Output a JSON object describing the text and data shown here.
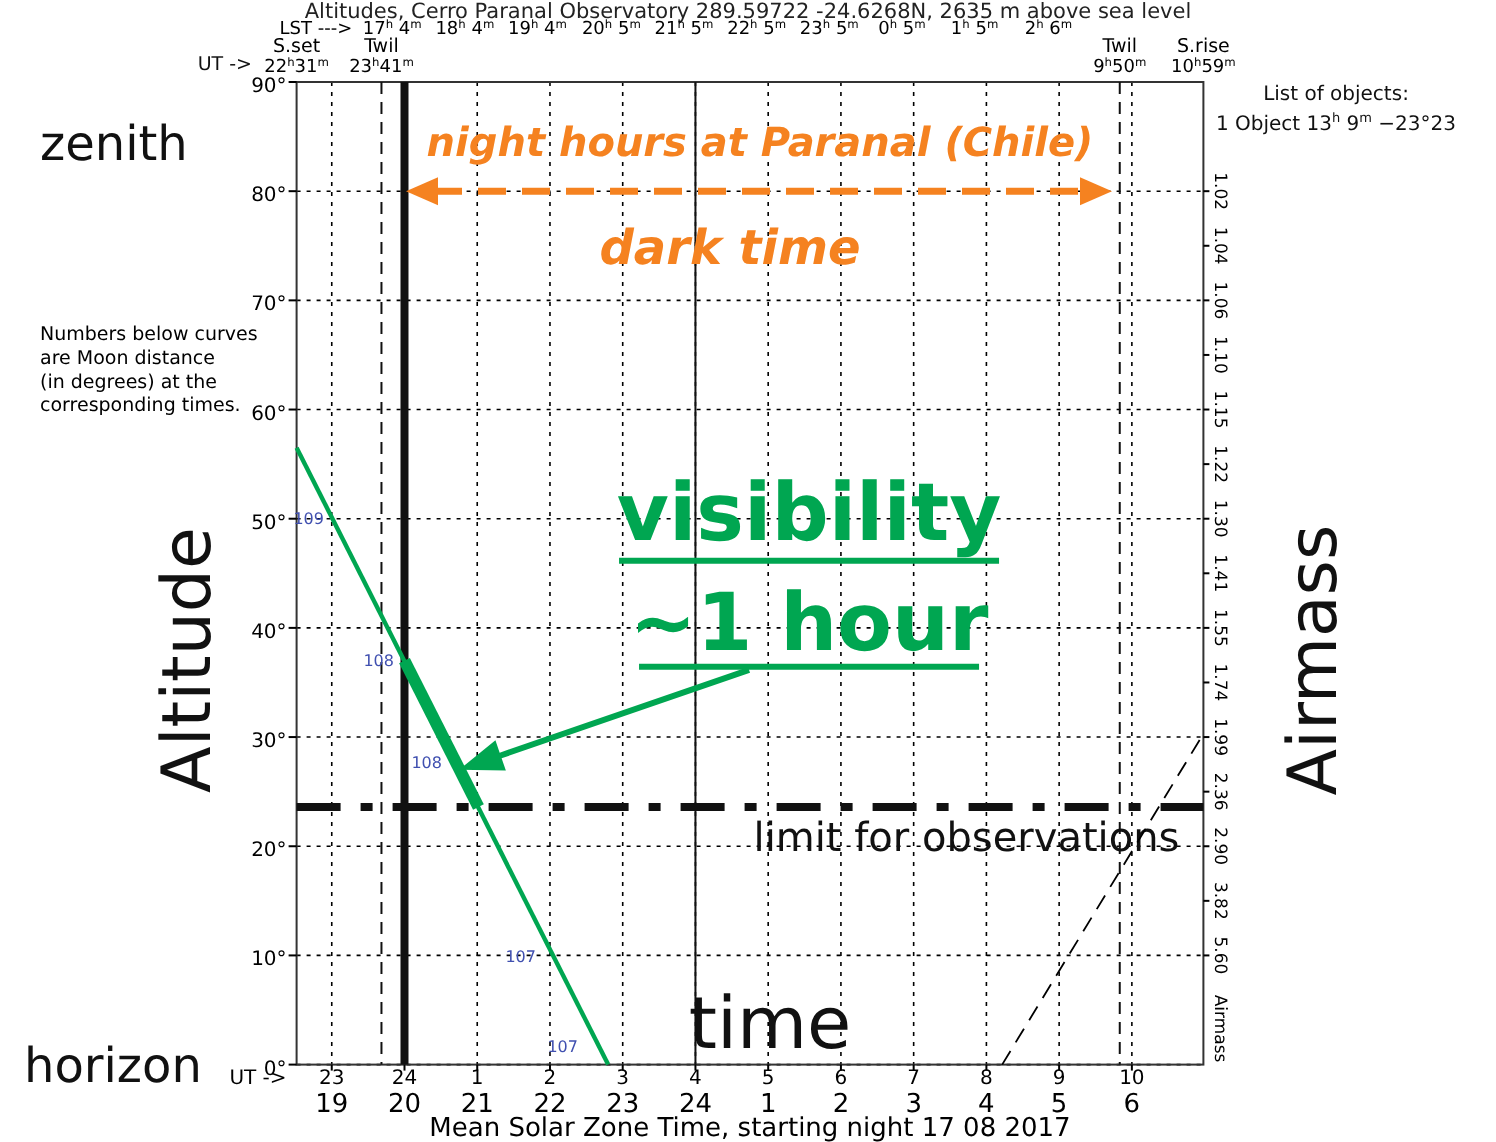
{
  "chart_data": {
    "type": "line",
    "title": "Altitudes, Cerro Paranal Observatory     289.59722  -24.6268N, 2635 m above sea level",
    "xlabel": "Mean Solar Zone Time, starting night 17 08 2017",
    "ylabel": "Altitude",
    "x2label": "LST --->",
    "xlim": [
      "2017-08-17T18:31",
      "2017-08-18T06:59"
    ],
    "xticks": [
      {
        "value": "2017-08-17T19:00",
        "label": "19"
      },
      {
        "value": "2017-08-17T20:00",
        "label": "20"
      },
      {
        "value": "2017-08-17T21:00",
        "label": "21"
      },
      {
        "value": "2017-08-17T22:00",
        "label": "22"
      },
      {
        "value": "2017-08-17T23:00",
        "label": "23"
      },
      {
        "value": "2017-08-18T00:00",
        "label": "24"
      },
      {
        "value": "2017-08-18T01:00",
        "label": "1"
      },
      {
        "value": "2017-08-18T02:00",
        "label": "2"
      },
      {
        "value": "2017-08-18T03:00",
        "label": "3"
      },
      {
        "value": "2017-08-18T04:00",
        "label": "4"
      },
      {
        "value": "2017-08-18T05:00",
        "label": "5"
      },
      {
        "value": "2017-08-18T06:00",
        "label": "6"
      }
    ],
    "x2lim": [
      "2017-08-17T15:45",
      "2017-08-18T04:14"
    ],
    "x2ticks": [
      {
        "value": "2017-08-17T17:04",
        "label": "17$^{h}$ 4$^{m}$"
      },
      {
        "value": "2017-08-17T18:04",
        "label": "18$^{h}$ 4$^{m}$"
      },
      {
        "value": "2017-08-17T19:04",
        "label": "19$^{h}$ 4$^{m}$"
      },
      {
        "value": "2017-08-17T20:05",
        "label": "20$^{h}$ 5$^{m}$"
      },
      {
        "value": "2017-08-17T21:05",
        "label": "21$^{h}$ 5$^{m}$"
      },
      {
        "value": "2017-08-17T22:05",
        "label": "22$^{h}$ 5$^{m}$"
      },
      {
        "value": "2017-08-17T23:05",
        "label": "23$^{h}$ 5$^{m}$"
      },
      {
        "value": "2017-08-18T00:05",
        "label": "0$^{h}$ 5$^{m}$"
      },
      {
        "value": "2017-08-18T01:05",
        "label": "1$^{h}$ 5$^{m}$"
      },
      {
        "value": "2017-08-18T02:06",
        "label": "2$^{h}$ 6$^{m}$"
      }
    ],
    "ylim": [
      0,
      90
    ],
    "yticks": [
      {
        "value": 0,
        "label": "0°"
      },
      {
        "value": 10,
        "label": "10°"
      },
      {
        "value": 20,
        "label": "20°"
      },
      {
        "value": 30,
        "label": "30°"
      },
      {
        "value": 40,
        "label": "40°"
      },
      {
        "value": 50,
        "label": "50°"
      },
      {
        "value": 60,
        "label": "60°"
      },
      {
        "value": 70,
        "label": "70°"
      },
      {
        "value": 80,
        "label": "80°"
      },
      {
        "value": 90,
        "label": "90°"
      }
    ],
    "grid": true,
    "marker": "none",
    "series": [
      {
        "color": "#00a651",
        "x": [
          "2017-08-17T18:31",
          "2017-08-17T22:48"
        ],
        "values": [
          56.5,
          0
        ]
      },
      {
        "color": "#00a651",
        "x": [
          "2017-08-17T20:00",
          "2017-08-17T21:01"
        ],
        "values": [
          37.0,
          23.6
        ]
      },
      {
        "color": "#000000",
        "x": [
          "2017-08-18T04:13",
          "2017-08-18T06:59"
        ],
        "values": [
          0,
          30.3
        ],
        "line_style": "dashed"
      }
    ],
    "ref_lines": [
      {
        "axis": "x",
        "value": "2017-08-17T19:41",
        "label": "Twil 23$^{h}$41$^{m}$",
        "line_style": "dashed"
      },
      {
        "axis": "x",
        "value": "2017-08-17T20:00",
        "line_style": "solid"
      },
      {
        "axis": "x",
        "value": "2017-08-18T00:00",
        "line_style": "solid"
      },
      {
        "axis": "x",
        "value": "2017-08-18T05:50",
        "label": "Twil 9$^{h}$50$^{m}$",
        "line_style": "dashed"
      },
      {
        "axis": "y",
        "value": 23.6,
        "label": "limit for observations",
        "line_style": "dashed"
      }
    ],
    "annotations": [
      "zenith",
      "horizon",
      "Numbers below curves are Moon distance (in degrees) at the corresponding times.",
      "List of objects:",
      "1 Object 13$^{h}$ 9$^{m}$ −23°23",
      "Airmass",
      "time",
      "dark time",
      "UT ->",
      "night hours at Paranal (Chile)",
      "UT -> 23 24 1 2 3 4 5 6 7 8 9 10",
      "109",
      "108",
      "108",
      "107",
      "107",
      "S.set 22$^{h}$31$^{m}$",
      "S.rise 10$^{h}$59$^{m}$",
      "1.02 1.04 1.06 1.10 1.15 1.22 1.30 1.41 1.55 1.74 1.99 2.36 2.90 3.82 5.60 Airmass",
      {
        "text": "visibility ~1 hour",
        "x": "2017-08-17T20:45",
        "y": 27
      }
    ]
  }
}
